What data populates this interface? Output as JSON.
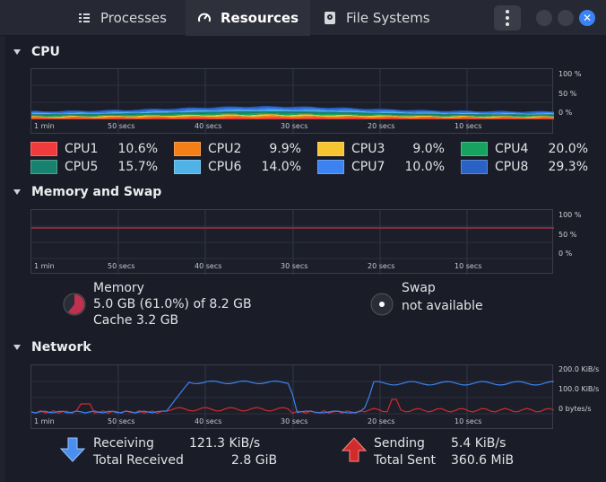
{
  "tabs": [
    {
      "label": "Processes",
      "icon": "list-icon"
    },
    {
      "label": "Resources",
      "icon": "gauge-icon"
    },
    {
      "label": "File Systems",
      "icon": "disk-icon"
    }
  ],
  "window": {
    "close_glyph": "✕"
  },
  "time_axis": [
    "1 min",
    "50 secs",
    "40 secs",
    "30 secs",
    "20 secs",
    "10 secs"
  ],
  "cpu": {
    "title": "CPU",
    "y_labels": [
      "100 %",
      "50 %",
      "0 %"
    ],
    "cores": [
      {
        "name": "CPU1",
        "value": "10.6%",
        "color": "#ef3b3b"
      },
      {
        "name": "CPU2",
        "value": "9.9%",
        "color": "#f57f17"
      },
      {
        "name": "CPU3",
        "value": "9.0%",
        "color": "#f6c531"
      },
      {
        "name": "CPU4",
        "value": "20.0%",
        "color": "#16a35f"
      },
      {
        "name": "CPU5",
        "value": "15.7%",
        "color": "#17826e"
      },
      {
        "name": "CPU6",
        "value": "14.0%",
        "color": "#4fb3e8"
      },
      {
        "name": "CPU7",
        "value": "10.0%",
        "color": "#3c82f0"
      },
      {
        "name": "CPU8",
        "value": "29.3%",
        "color": "#2962c4"
      }
    ]
  },
  "memory": {
    "title": "Memory and Swap",
    "y_labels": [
      "100 %",
      "50 %",
      "0 %"
    ],
    "memory_label": "Memory",
    "memory_usage": "5.0 GB (61.0%) of 8.2 GB",
    "memory_cache": "Cache 3.2 GB",
    "memory_fraction": 0.61,
    "memory_color": "#c0314f",
    "swap_label": "Swap",
    "swap_status": "not available"
  },
  "network": {
    "title": "Network",
    "y_labels": [
      "200.0 KiB/s",
      "100.0 KiB/s",
      "0 bytes/s"
    ],
    "receiving_label": "Receiving",
    "receiving_value": "121.3 KiB/s",
    "total_received_label": "Total Received",
    "total_received_value": "2.8 GiB",
    "sending_label": "Sending",
    "sending_value": "5.4 KiB/s",
    "total_sent_label": "Total Sent",
    "total_sent_value": "360.6 MiB",
    "receive_color": "#3c82f0",
    "send_color": "#d22b2b"
  }
}
